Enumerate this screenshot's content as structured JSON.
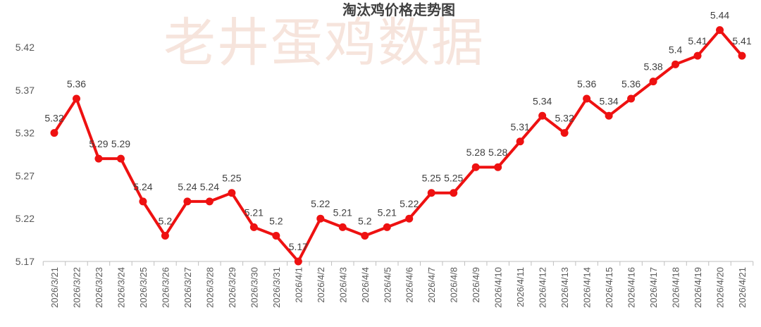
{
  "watermark": "老井蛋鸡数据",
  "chart_data": {
    "type": "line",
    "title": "淘汰鸡价格走势图",
    "xlabel": "",
    "ylabel": "",
    "ylim": [
      5.17,
      5.445
    ],
    "yticks": [
      "5.17",
      "5.22",
      "5.27",
      "5.32",
      "5.37",
      "5.42"
    ],
    "grid": false,
    "line_color": "#ee1111",
    "categories": [
      "2026/3/21",
      "2026/3/22",
      "2026/3/23",
      "2026/3/24",
      "2026/3/25",
      "2026/3/26",
      "2026/3/27",
      "2026/3/28",
      "2026/3/29",
      "2026/3/30",
      "2026/3/31",
      "2026/4/1",
      "2026/4/2",
      "2026/4/3",
      "2026/4/4",
      "2026/4/5",
      "2026/4/6",
      "2026/4/7",
      "2026/4/8",
      "2026/4/9",
      "2026/4/10",
      "2026/4/11",
      "2026/4/12",
      "2026/4/13",
      "2026/4/14",
      "2026/4/15",
      "2026/4/16",
      "2026/4/17",
      "2026/4/18",
      "2026/4/19",
      "2026/4/20",
      "2026/4/21"
    ],
    "values": [
      5.32,
      5.36,
      5.29,
      5.29,
      5.24,
      5.2,
      5.24,
      5.24,
      5.25,
      5.21,
      5.2,
      5.17,
      5.22,
      5.21,
      5.2,
      5.21,
      5.22,
      5.25,
      5.25,
      5.28,
      5.28,
      5.31,
      5.34,
      5.32,
      5.36,
      5.34,
      5.36,
      5.38,
      5.4,
      5.41,
      5.44,
      5.41
    ],
    "data_labels": [
      "5.32",
      "5.36",
      "5.29",
      "5.29",
      "5.24",
      "5.2",
      "5.24",
      "5.24",
      "5.25",
      "5.21",
      "5.2",
      "5.17",
      "5.22",
      "5.21",
      "5.2",
      "5.21",
      "5.22",
      "5.25",
      "5.25",
      "5.28",
      "5.28",
      "5.31",
      "5.34",
      "5.32",
      "5.36",
      "5.34",
      "5.36",
      "5.38",
      "5.4",
      "5.41",
      "5.44",
      "5.41"
    ]
  }
}
